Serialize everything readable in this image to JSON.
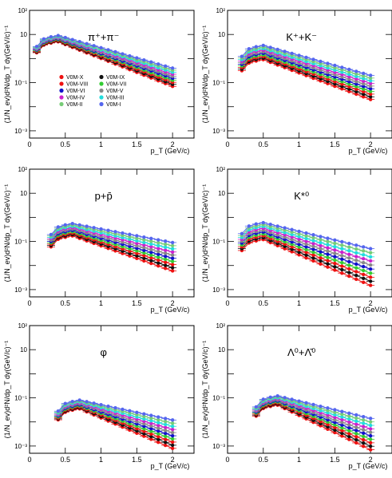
{
  "figure": {
    "ylabel": "(1/N_ev)d²N/dp_T dy(GeV/c)⁻¹",
    "xlabel": "p_T (GeV/c)",
    "xticks": [
      0,
      0.5,
      1,
      1.5,
      2
    ],
    "xtick_labels": [
      "0",
      "0.5",
      "1",
      "1.5",
      "2"
    ],
    "yticks": [
      0.001,
      0.1,
      10,
      100
    ],
    "ytick_labels": [
      "10⁻³",
      "10⁻¹",
      "10",
      "10²"
    ],
    "xlim": [
      0,
      2.3
    ],
    "ylim": [
      0.0005,
      100
    ],
    "yscale": "log"
  },
  "legend": [
    {
      "label": "V0M-X",
      "color": "#ee1111"
    },
    {
      "label": "V0M-IX",
      "color": "#111111"
    },
    {
      "label": "V0M-VIII",
      "color": "#ee1111"
    },
    {
      "label": "V0M-VII",
      "color": "#33cc33"
    },
    {
      "label": "V0M-VI",
      "color": "#1111cc"
    },
    {
      "label": "V0M-V",
      "color": "#888888"
    },
    {
      "label": "V0M-IV",
      "color": "#cc22cc"
    },
    {
      "label": "V0M-III",
      "color": "#22dddd"
    },
    {
      "label": "V0M-II",
      "color": "#77cc77"
    },
    {
      "label": "V0M-I",
      "color": "#5566ee"
    }
  ],
  "chart_data": [
    {
      "type": "scatter",
      "title": "π⁺+π⁻",
      "ylim": [
        0.0005,
        100
      ],
      "yscale": "log",
      "x": [
        0.1,
        0.2,
        0.3,
        0.4,
        0.5,
        0.6,
        0.7,
        0.8,
        0.9,
        1.0,
        1.1,
        1.2,
        1.3,
        1.4,
        1.5,
        1.6,
        1.7,
        1.8,
        1.9,
        2.0
      ],
      "series": [
        {
          "name": "V0M-X",
          "peak": 5.0,
          "at_2": 0.07
        },
        {
          "name": "V0M-I",
          "peak": 9.0,
          "at_2": 0.4
        }
      ]
    },
    {
      "type": "scatter",
      "title": "K⁺+K⁻",
      "ylim": [
        0.0005,
        100
      ],
      "yscale": "log",
      "x": [
        0.2,
        0.3,
        0.4,
        0.5,
        0.6,
        0.7,
        0.8,
        0.9,
        1.0,
        1.1,
        1.2,
        1.3,
        1.4,
        1.5,
        1.6,
        1.7,
        1.8,
        1.9,
        2.0
      ],
      "series": [
        {
          "name": "V0M-X",
          "peak": 0.9,
          "at_2": 0.02
        },
        {
          "name": "V0M-I",
          "peak": 3.5,
          "at_2": 0.2
        }
      ]
    },
    {
      "type": "scatter",
      "title": "p+p̄",
      "ylim": [
        0.0005,
        100
      ],
      "yscale": "log",
      "x": [
        0.3,
        0.4,
        0.5,
        0.6,
        0.7,
        0.8,
        0.9,
        1.0,
        1.1,
        1.2,
        1.3,
        1.4,
        1.5,
        1.6,
        1.7,
        1.8,
        1.9,
        2.0
      ],
      "series": [
        {
          "name": "V0M-X",
          "peak": 0.17,
          "at_2": 0.006
        },
        {
          "name": "V0M-I",
          "peak": 0.55,
          "at_2": 0.09
        }
      ]
    },
    {
      "type": "scatter",
      "title": "K*⁰",
      "ylim": [
        0.0005,
        100
      ],
      "yscale": "log",
      "x": [
        0.2,
        0.3,
        0.4,
        0.5,
        0.6,
        0.7,
        0.8,
        0.9,
        1.0,
        1.1,
        1.2,
        1.3,
        1.4,
        1.5,
        1.6,
        1.7,
        1.8,
        1.9,
        2.0
      ],
      "series": [
        {
          "name": "V0M-X",
          "peak": 0.12,
          "at_2": 0.0015
        },
        {
          "name": "V0M-I",
          "peak": 0.6,
          "at_2": 0.05
        }
      ]
    },
    {
      "type": "scatter",
      "title": "φ",
      "ylim": [
        0.0005,
        100
      ],
      "yscale": "log",
      "x": [
        0.4,
        0.5,
        0.6,
        0.7,
        0.8,
        0.9,
        1.0,
        1.1,
        1.2,
        1.3,
        1.4,
        1.5,
        1.6,
        1.7,
        1.8,
        1.9,
        2.0
      ],
      "series": [
        {
          "name": "V0M-X",
          "peak": 0.035,
          "at_2": 0.0008
        },
        {
          "name": "V0M-I",
          "peak": 0.08,
          "at_2": 0.012
        }
      ]
    },
    {
      "type": "scatter",
      "title": "Λ⁰+Λ̄⁰",
      "ylim": [
        0.0005,
        100
      ],
      "yscale": "log",
      "x": [
        0.4,
        0.5,
        0.6,
        0.7,
        0.8,
        0.9,
        1.0,
        1.1,
        1.2,
        1.3,
        1.4,
        1.5,
        1.6,
        1.7,
        1.8,
        1.9,
        2.0
      ],
      "series": [
        {
          "name": "V0M-X",
          "peak": 0.05,
          "at_2": 0.0007
        },
        {
          "name": "V0M-I",
          "peak": 0.12,
          "at_2": 0.014
        }
      ]
    }
  ]
}
